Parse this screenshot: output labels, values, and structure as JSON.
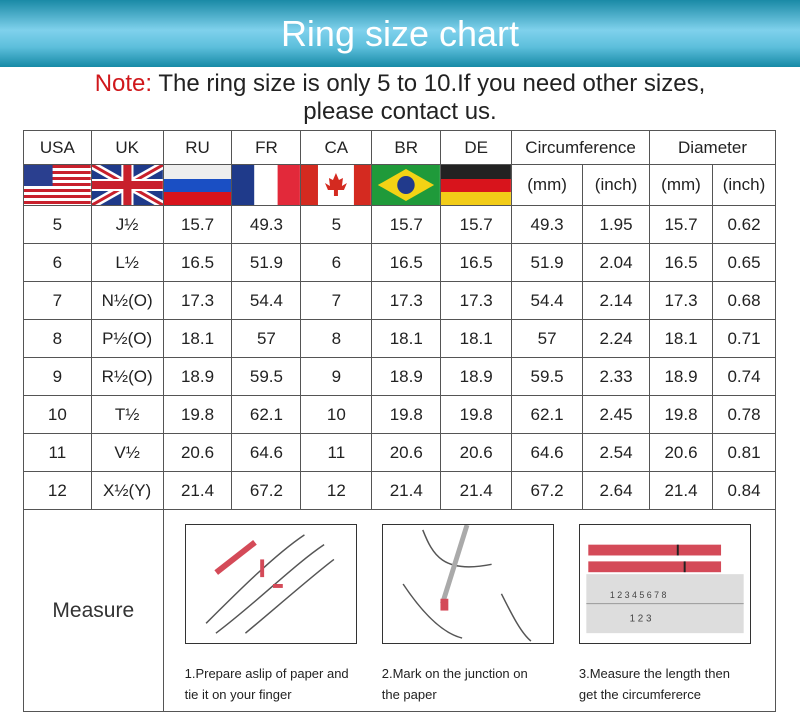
{
  "title": "Ring size chart",
  "note": {
    "label": "Note:",
    "text": " The ring size is only 5 to 10.If you need other sizes,",
    "text2": "please contact us."
  },
  "headers": [
    "USA",
    "UK",
    "RU",
    "FR",
    "CA",
    "BR",
    "DE",
    "Circumference",
    "Diameter"
  ],
  "flags": [
    "usa-flag",
    "uk-flag",
    "russia-flag",
    "france-flag",
    "canada-flag",
    "brazil-flag",
    "germany-flag"
  ],
  "units": [
    "(mm)",
    "(inch)",
    "(mm)",
    "(inch)"
  ],
  "rows": [
    [
      "5",
      "J½",
      "15.7",
      "49.3",
      "5",
      "15.7",
      "15.7",
      "49.3",
      "1.95",
      "15.7",
      "0.62"
    ],
    [
      "6",
      "L½",
      "16.5",
      "51.9",
      "6",
      "16.5",
      "16.5",
      "51.9",
      "2.04",
      "16.5",
      "0.65"
    ],
    [
      "7",
      "N½(O)",
      "17.3",
      "54.4",
      "7",
      "17.3",
      "17.3",
      "54.4",
      "2.14",
      "17.3",
      "0.68"
    ],
    [
      "8",
      "P½(O)",
      "18.1",
      "57",
      "8",
      "18.1",
      "18.1",
      "57",
      "2.24",
      "18.1",
      "0.71"
    ],
    [
      "9",
      "R½(O)",
      "18.9",
      "59.5",
      "9",
      "18.9",
      "18.9",
      "59.5",
      "2.33",
      "18.9",
      "0.74"
    ],
    [
      "10",
      "T½",
      "19.8",
      "62.1",
      "10",
      "19.8",
      "19.8",
      "62.1",
      "2.45",
      "19.8",
      "0.78"
    ],
    [
      "11",
      "V½",
      "20.6",
      "64.6",
      "11",
      "20.6",
      "20.6",
      "64.6",
      "2.54",
      "20.6",
      "0.81"
    ],
    [
      "12",
      "X½(Y)",
      "21.4",
      "67.2",
      "12",
      "21.4",
      "21.4",
      "67.2",
      "2.64",
      "21.4",
      "0.84"
    ]
  ],
  "measure": {
    "label": "Measure",
    "steps": [
      {
        "line1": "1.Prepare aslip of paper and",
        "line2": "tie it on your finger"
      },
      {
        "line1": "2.Mark on the junction on",
        "line2": "the paper"
      },
      {
        "line1": "3.Measure the length then",
        "line2": "get the circumfererce"
      }
    ]
  },
  "colors": {
    "banner": "#5dbfdc",
    "note_red": "#d0181c",
    "paper_strip": "#d44a58"
  }
}
